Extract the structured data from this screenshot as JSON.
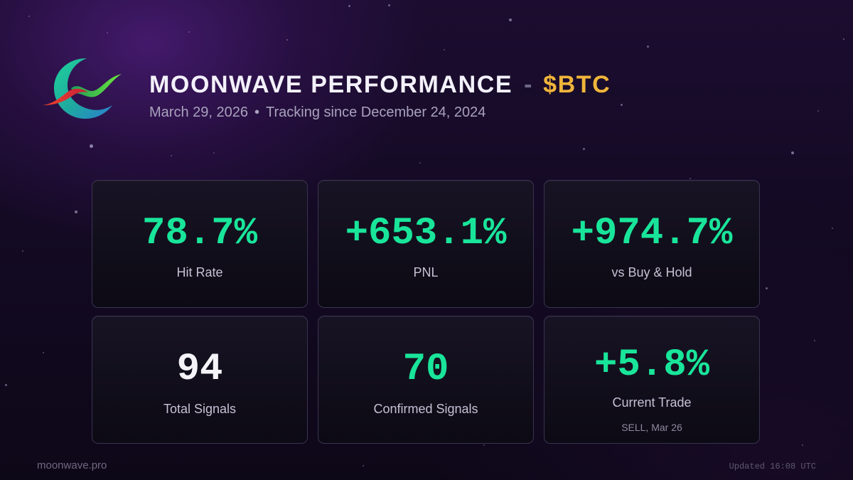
{
  "header": {
    "title": "MOONWAVE PERFORMANCE",
    "separator": "-",
    "ticker": "$BTC",
    "date": "March 29, 2026",
    "bullet": "•",
    "tracking": "Tracking since December 24, 2024"
  },
  "stats": {
    "hit_rate": {
      "value": "78.7%",
      "label": "Hit Rate"
    },
    "pnl": {
      "value": "+653.1%",
      "label": "PNL"
    },
    "vs_hold": {
      "value": "+974.7%",
      "label": "vs Buy & Hold"
    },
    "total_signals": {
      "value": "94",
      "label": "Total Signals"
    },
    "confirmed_signals": {
      "value": "70",
      "label": "Confirmed Signals"
    },
    "current_trade": {
      "value": "+5.8%",
      "label": "Current Trade",
      "detail": "SELL, Mar 26"
    }
  },
  "footer": {
    "site": "moonwave.pro",
    "updated": "Updated 16:08 UTC"
  },
  "colors": {
    "accent_green": "#19e59a",
    "ticker_gold": "#f0b53a",
    "value_white": "#f4f3f8"
  },
  "icons": {
    "logo": "moonwave-crescent-wave-logo"
  }
}
